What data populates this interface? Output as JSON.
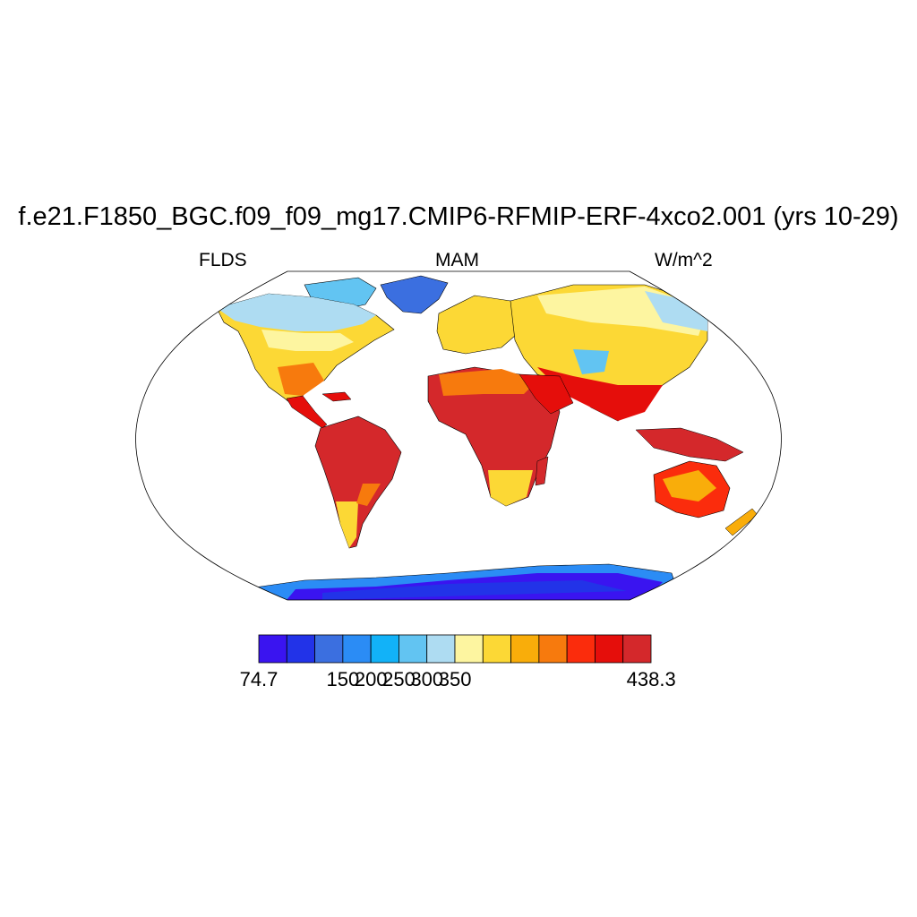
{
  "title": "f.e21.F1850_BGC.f09_f09_mg17.CMIP6-RFMIP-ERF-4xco2.001 (yrs 10-29)",
  "left_label": "FLDS",
  "center_label": "MAM",
  "right_label": "W/m^2",
  "colorbar": {
    "colors": [
      "#3a14f0",
      "#2233e8",
      "#3b6fe0",
      "#2b8cf5",
      "#12b2f8",
      "#62c4f2",
      "#aedcf2",
      "#fdf5a0",
      "#fcd835",
      "#f9ad0a",
      "#f77a0d",
      "#fb2c0c",
      "#e50e0b",
      "#d4282b"
    ],
    "labels": [
      "74.7",
      "150",
      "200",
      "250",
      "300",
      "350",
      "438.3"
    ]
  }
}
